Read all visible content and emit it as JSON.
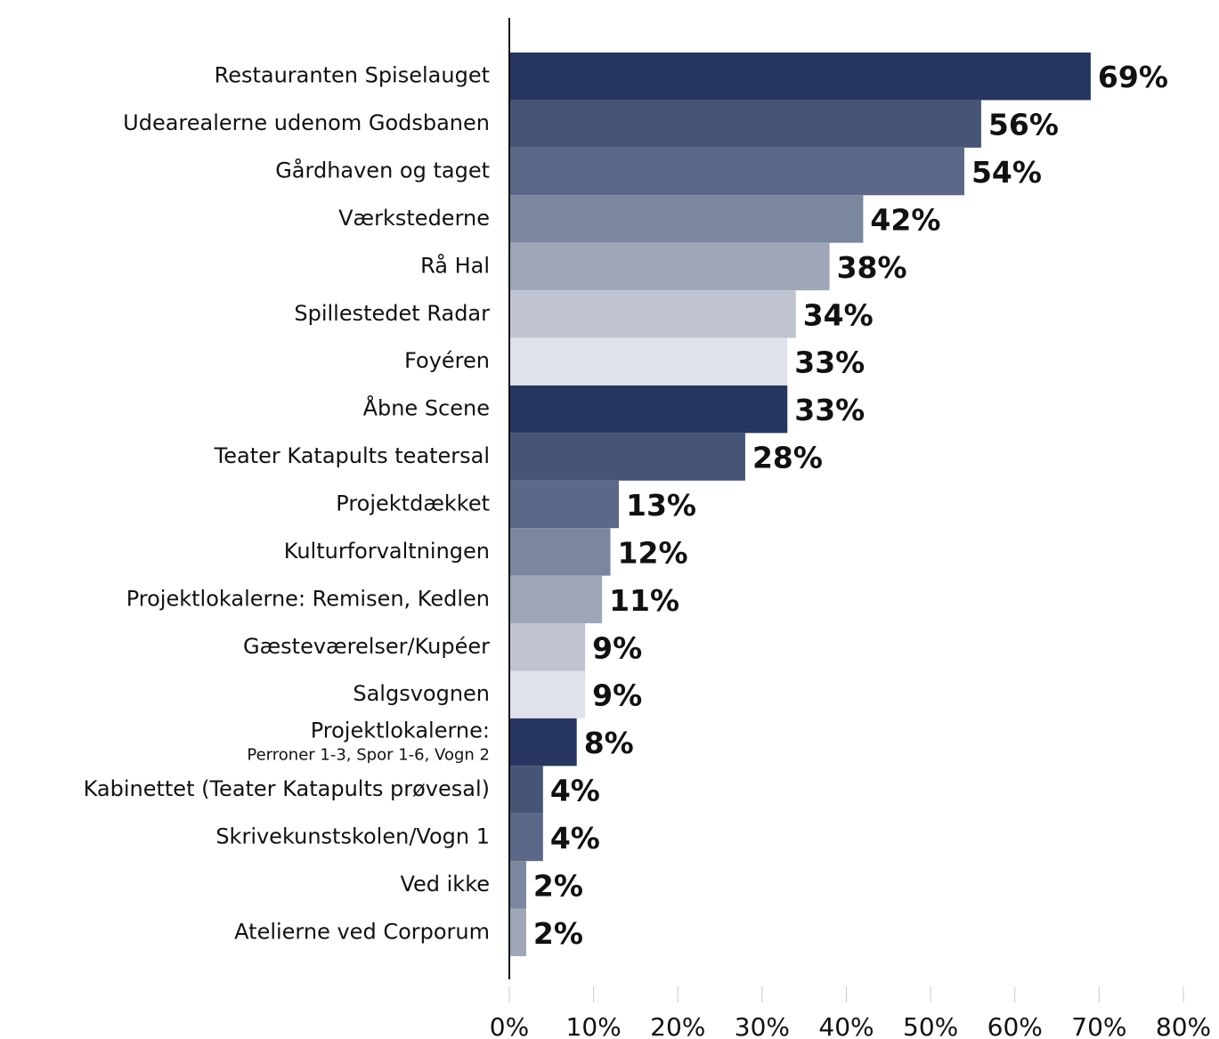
{
  "chart_data": {
    "type": "barh",
    "categories": [
      "Restauranten Spiselauget",
      "Udearealerne udenom Godsbanen",
      "Gårdhaven og taget",
      "Værkstederne",
      "Rå Hal",
      "Spillestedet Radar",
      "Foyéren",
      "Åbne Scene",
      "Teater Katapults teatersal",
      "Projektdækket",
      "Kulturforvaltningen",
      "Projektlokalerne: Remisen, Kedlen",
      "Gæsteværelser/Kupéer",
      "Salgsvognen",
      "Projektlokalerne:",
      "Kabinettet (Teater Katapults prøvesal)",
      "Skrivekunstskolen/Vogn 1",
      "Ved ikke",
      "Atelierne ved Corporum"
    ],
    "category_sublabels": {
      "14": "Perroner 1-3, Spor 1-6, Vogn 2"
    },
    "values": [
      69,
      56,
      54,
      42,
      38,
      34,
      33,
      33,
      28,
      13,
      12,
      11,
      9,
      9,
      8,
      4,
      4,
      2,
      2
    ],
    "value_labels": [
      "69%",
      "56%",
      "54%",
      "42%",
      "38%",
      "34%",
      "33%",
      "33%",
      "28%",
      "13%",
      "12%",
      "11%",
      "9%",
      "9%",
      "8%",
      "4%",
      "4%",
      "2%",
      "2%"
    ],
    "colors": [
      "#263660",
      "#465476",
      "#5b6888",
      "#7b869f",
      "#9ea6b8",
      "#bfc4d0",
      "#dfe2ea"
    ],
    "xlim": [
      0,
      80
    ],
    "xticks": [
      {
        "value": 0,
        "label": "0%"
      },
      {
        "value": 10,
        "label": "10%"
      },
      {
        "value": 20,
        "label": "20%"
      },
      {
        "value": 30,
        "label": "30%"
      },
      {
        "value": 40,
        "label": "40%"
      },
      {
        "value": 50,
        "label": "50%"
      },
      {
        "value": 60,
        "label": "60%"
      },
      {
        "value": 70,
        "label": "70%"
      },
      {
        "value": 80,
        "label": "80%"
      }
    ]
  }
}
